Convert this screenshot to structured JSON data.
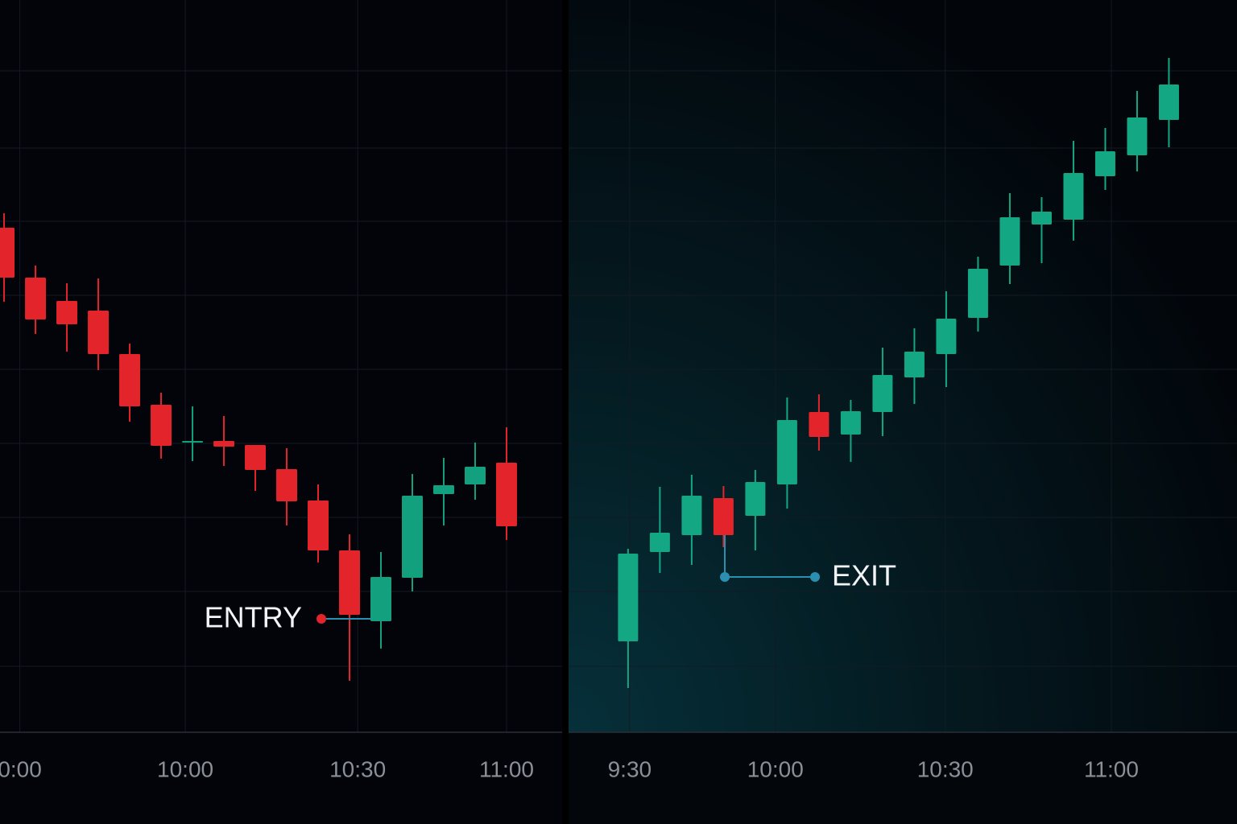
{
  "chart_data": [
    {
      "type": "candlestick",
      "x": [
        0,
        1,
        2,
        3,
        4,
        5,
        6,
        7,
        8,
        9,
        10,
        11,
        12,
        13,
        14,
        15,
        16
      ],
      "open": [
        62.7,
        56.5,
        53.6,
        52.4,
        47,
        40.7,
        36.2,
        36.2,
        35.7,
        32.7,
        28.8,
        22.6,
        13.8,
        19.2,
        29.6,
        30.8,
        33.5
      ],
      "high": [
        64.5,
        58,
        55.8,
        56.4,
        48.3,
        42.2,
        40.5,
        39.3,
        35.7,
        35.3,
        30.8,
        24.6,
        22.4,
        32.1,
        34.1,
        36,
        37.9
      ],
      "low": [
        53.5,
        49.5,
        47.3,
        45,
        38.6,
        34,
        33.7,
        33.1,
        30,
        25.7,
        21.1,
        6.4,
        10.4,
        17.5,
        25.7,
        28.9,
        23.9
      ],
      "close": [
        56.5,
        51.3,
        50.7,
        47,
        40.5,
        35.6,
        36.2,
        35.5,
        32.6,
        28.7,
        22.6,
        14.6,
        19.3,
        29.4,
        30.7,
        33,
        25.6
      ],
      "up_color": "#12a07f",
      "down_color": "#e3242b",
      "xlim": [
        -0.13,
        17.77
      ],
      "ylim": [
        0,
        91
      ],
      "xticks": [
        {
          "value": 0.5,
          "label": "0:00"
        },
        {
          "value": 5.77,
          "label": "10:00"
        },
        {
          "value": 11.26,
          "label": "10:30"
        },
        {
          "value": 16,
          "label": "11:00"
        }
      ],
      "ygrid": [
        8.2,
        17.5,
        26.7,
        35.9,
        45.1,
        54.3,
        63.5,
        72.6,
        82.2
      ],
      "grid": true,
      "annotation": "ENTRY"
    },
    {
      "type": "candlestick",
      "x": [
        0,
        1,
        2,
        3,
        4,
        5,
        6,
        7,
        8,
        9,
        10,
        11,
        12,
        13,
        14,
        15,
        16,
        17
      ],
      "open": [
        11.3,
        22.4,
        24.5,
        29.1,
        26.9,
        30.8,
        39.8,
        37,
        39.8,
        44.1,
        47,
        51.5,
        58,
        63.1,
        63.7,
        69.1,
        71.7,
        76.1
      ],
      "high": [
        22.8,
        30.5,
        32,
        30.6,
        32.6,
        41.6,
        42,
        41.3,
        47.8,
        50.2,
        54.8,
        59.1,
        67,
        66.5,
        73.5,
        75.1,
        79.7,
        83.8
      ],
      "low": [
        5.5,
        19.8,
        20.8,
        23,
        22.6,
        27.8,
        35,
        33.6,
        36.8,
        40.8,
        42.9,
        49.8,
        55.7,
        58.3,
        61.1,
        67.4,
        69.7,
        72.7
      ],
      "close": [
        22.2,
        24.8,
        29.4,
        24.5,
        31.1,
        38.8,
        36.7,
        39.9,
        44.4,
        47.3,
        51.4,
        57.6,
        64,
        64.7,
        69.5,
        72.2,
        76.4,
        80.5
      ],
      "up_color": "#13a784",
      "down_color": "#e3242b",
      "xlim": [
        -1.87,
        19.14
      ],
      "ylim": [
        0,
        91
      ],
      "xticks": [
        {
          "value": 0.05,
          "label": "9:30"
        },
        {
          "value": 4.63,
          "label": "10:00"
        },
        {
          "value": 9.97,
          "label": "10:30"
        },
        {
          "value": 15.19,
          "label": "11:00"
        }
      ],
      "ygrid": [
        8.2,
        17.5,
        26.7,
        35.9,
        45.1,
        54.3,
        63.5,
        72.6,
        82.2
      ],
      "grid": true,
      "annotation": "EXIT"
    }
  ]
}
